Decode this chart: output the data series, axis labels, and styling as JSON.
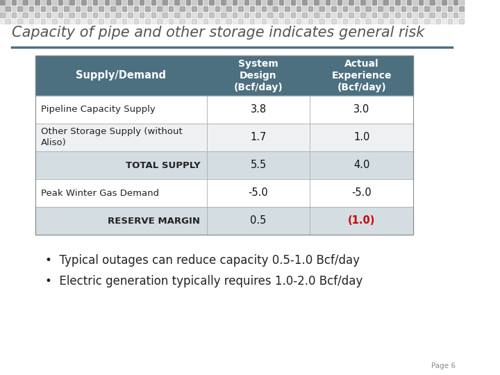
{
  "title": "Capacity of pipe and other storage indicates general risk",
  "title_fontsize": 15,
  "title_color": "#555555",
  "background_color": "#ffffff",
  "header_bg": "#4d7080",
  "header_text_color": "#ffffff",
  "separator_line_color": "#4d7080",
  "columns": [
    "Supply/Demand",
    "System\nDesign\n(Bcf/day)",
    "Actual\nExperience\n(Bcf/day)"
  ],
  "rows": [
    {
      "label": "Pipeline Capacity Supply",
      "system": "3.8",
      "actual": "3.0",
      "indent": false,
      "row_bg": "#ffffff",
      "sys_color": "#111111",
      "act_color": "#111111"
    },
    {
      "label": "Other Storage Supply (without\nAliso)",
      "system": "1.7",
      "actual": "1.0",
      "indent": false,
      "row_bg": "#eef0f2",
      "sys_color": "#111111",
      "act_color": "#111111"
    },
    {
      "label": "TOTAL SUPPLY",
      "system": "5.5",
      "actual": "4.0",
      "indent": true,
      "row_bg": "#d3dde2",
      "sys_color": "#111111",
      "act_color": "#111111"
    },
    {
      "label": "Peak Winter Gas Demand",
      "system": "-5.0",
      "actual": "-5.0",
      "indent": false,
      "row_bg": "#ffffff",
      "sys_color": "#111111",
      "act_color": "#111111"
    },
    {
      "label": "RESERVE MARGIN",
      "system": "0.5",
      "actual": "(1.0)",
      "indent": true,
      "row_bg": "#d3dde2",
      "sys_color": "#111111",
      "act_color": "#cc0000"
    }
  ],
  "bullet1": "Typical outages can reduce capacity 0.5-1.0 Bcf/day",
  "bullet2": "Electric generation typically requires 1.0-2.0 Bcf/day",
  "bullet_fontsize": 12,
  "page_label": "Page 6"
}
